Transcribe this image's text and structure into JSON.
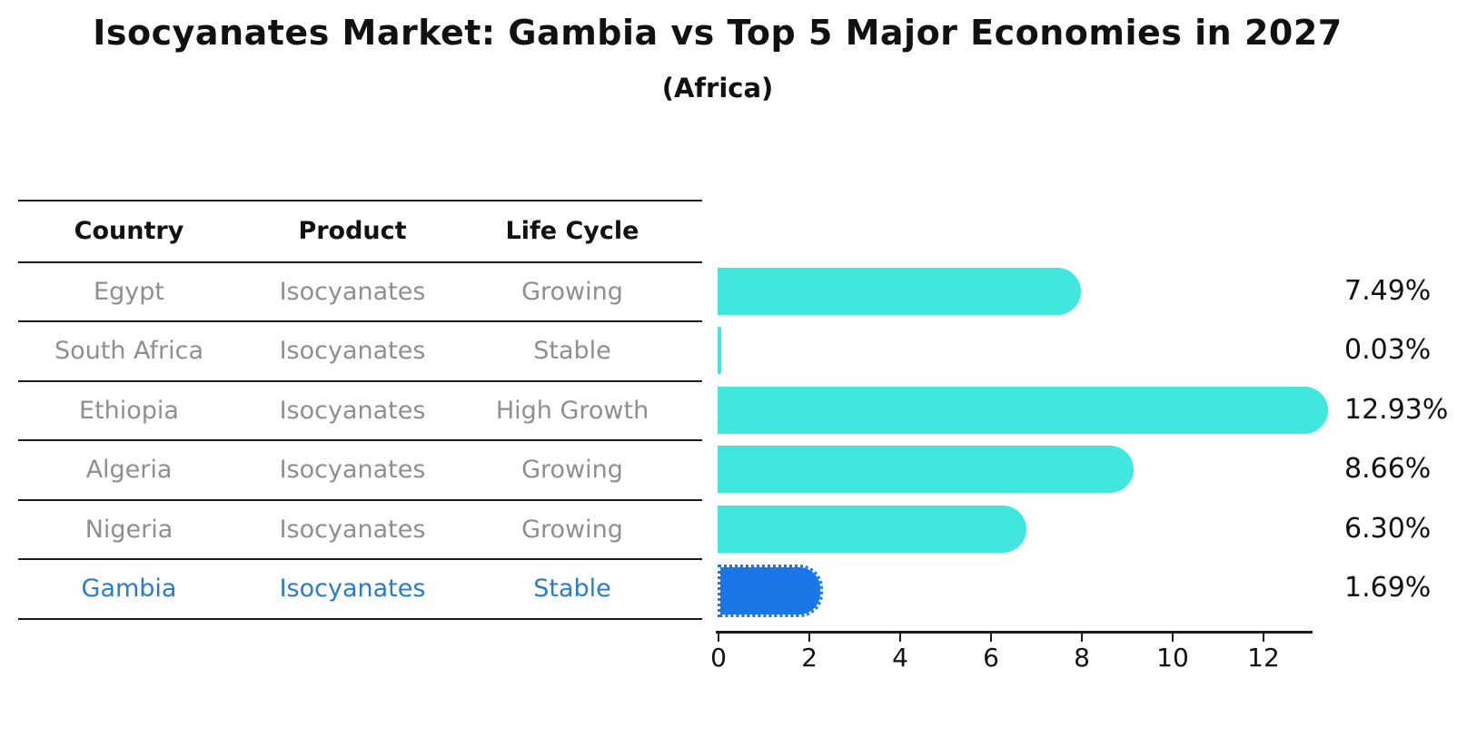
{
  "title": "Isocyanates Market: Gambia vs Top 5 Major Economies in 2027",
  "subtitle": "(Africa)",
  "table": {
    "columns": [
      "Country",
      "Product",
      "Life Cycle"
    ]
  },
  "chart_data": {
    "type": "bar",
    "orientation": "horizontal",
    "title": "Isocyanates Market: Gambia vs Top 5 Major Economies in 2027",
    "subtitle": "(Africa)",
    "xlabel": "",
    "ylabel": "",
    "xlim": [
      0,
      13.1
    ],
    "x_ticks": [
      0,
      2,
      4,
      6,
      8,
      10,
      12
    ],
    "grid": false,
    "legend": false,
    "rows": [
      {
        "country": "Egypt",
        "product": "Isocyanates",
        "life_cycle": "Growing",
        "value": 7.49,
        "value_label": "7.49%",
        "highlight": false
      },
      {
        "country": "South Africa",
        "product": "Isocyanates",
        "life_cycle": "Stable",
        "value": 0.03,
        "value_label": "0.03%",
        "highlight": false
      },
      {
        "country": "Ethiopia",
        "product": "Isocyanates",
        "life_cycle": "High Growth",
        "value": 12.93,
        "value_label": "12.93%",
        "highlight": false
      },
      {
        "country": "Algeria",
        "product": "Isocyanates",
        "life_cycle": "Growing",
        "value": 8.66,
        "value_label": "8.66%",
        "highlight": false
      },
      {
        "country": "Nigeria",
        "product": "Isocyanates",
        "life_cycle": "Growing",
        "value": 6.3,
        "value_label": "6.30%",
        "highlight": false
      },
      {
        "country": "Gambia",
        "product": "Isocyanates",
        "life_cycle": "Stable",
        "value": 1.69,
        "value_label": "1.69%",
        "highlight": true
      }
    ],
    "colors": {
      "bar": "#41e6dc",
      "highlight_bar": "#1b76e8",
      "highlight_text": "#2a7cc9",
      "row_text": "#8f8f8f",
      "axis": "#1c1c1c",
      "text": "#111111"
    }
  }
}
